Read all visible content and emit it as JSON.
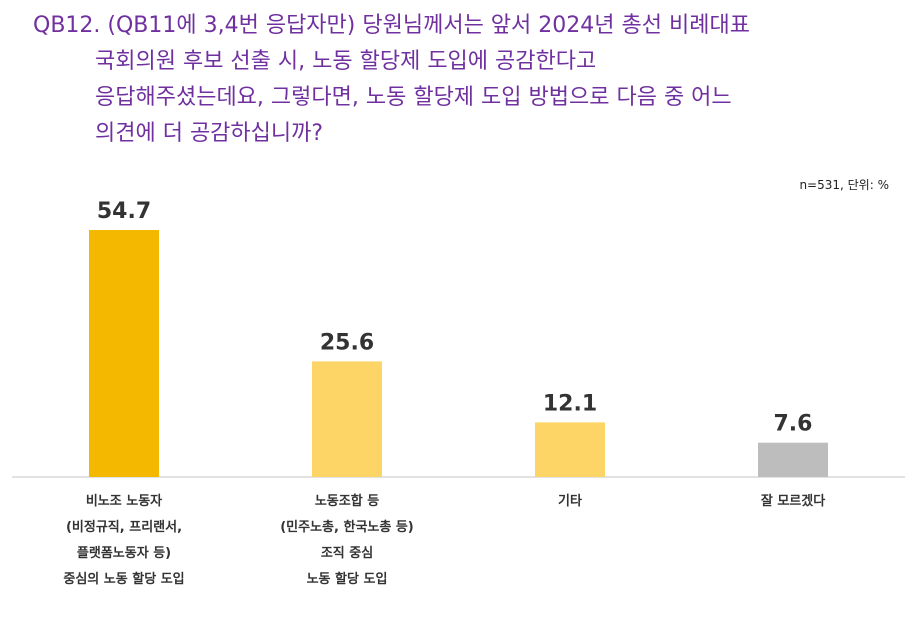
{
  "question": {
    "lines": [
      "QB12. (QB11에 3,4번 응답자만) 당원님께서는 앞서 2024년 총선 비례대표",
      "국회의원 후보 선출 시, 노동 할당제 도입에 공감한다고",
      "응답해주셨는데요, 그렇다면, 노동 할당제 도입 방법으로 다음 중 어느",
      "의견에 더 공감하십니까?"
    ]
  },
  "note": "n=531, 단위: %",
  "colors": {
    "primary": "#f5b800",
    "secondary": "#fdd466",
    "neutral": "#bdbdbd",
    "question": "#7030a0"
  },
  "chart_data": {
    "type": "bar",
    "categories": [
      "비노조 노동자 (비정규직, 프리랜서, 플랫폼노동자 등) 중심의 노동 할당 도입",
      "노동조합 등 (민주노총, 한국노총 등) 조직 중심 노동 할당 도입",
      "기타",
      "잘 모르겠다"
    ],
    "category_lines": [
      [
        "비노조 노동자",
        "(비정규직, 프리랜서,",
        "플랫폼노동자 등)",
        "중심의 노동 할당 도입"
      ],
      [
        "노동조합 등",
        "(민주노총, 한국노총 등)",
        "조직 중심",
        "노동 할당 도입"
      ],
      [
        "기타"
      ],
      [
        "잘 모르겠다"
      ]
    ],
    "values": [
      54.7,
      25.6,
      12.1,
      7.6
    ],
    "value_labels": [
      "54.7",
      "25.6",
      "12.1",
      "7.6"
    ],
    "bar_colors": [
      "#f5b800",
      "#fdd466",
      "#fdd466",
      "#bdbdbd"
    ],
    "ylim": [
      0,
      54.7
    ],
    "grid": false,
    "legend": "none"
  }
}
